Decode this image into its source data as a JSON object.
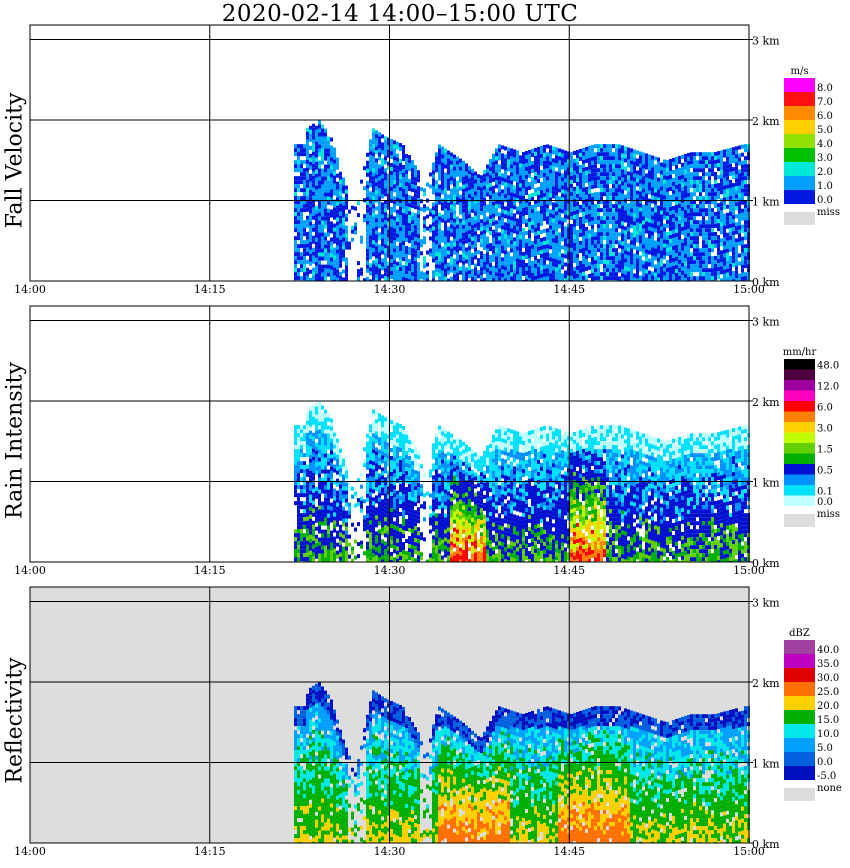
{
  "title": "2020-02-14   14:00–15:00 UTC",
  "x_tick_labels": [
    "14:00",
    "14:15",
    "14:30",
    "14:45",
    "15:00"
  ],
  "height_labels": [
    "3 km",
    "2 km",
    "1 km",
    "0 km"
  ],
  "panels": [
    {
      "id": "fall-velocity",
      "ylabel": "Fall Velocity",
      "unit": "m/s",
      "background": "#ffffff",
      "legend": [
        {
          "label": "8.0",
          "color": "#ff00ff"
        },
        {
          "label": "7.0",
          "color": "#ff1010"
        },
        {
          "label": "6.0",
          "color": "#ff8c00"
        },
        {
          "label": "5.0",
          "color": "#ffd000"
        },
        {
          "label": "4.0",
          "color": "#90e000"
        },
        {
          "label": "3.0",
          "color": "#00c000"
        },
        {
          "label": "2.0",
          "color": "#00e8d8"
        },
        {
          "label": "1.0",
          "color": "#00a0ff"
        },
        {
          "label": "0.0",
          "color": "#0018e0"
        }
      ],
      "miss_label": "miss"
    },
    {
      "id": "rain-intensity",
      "ylabel": "Rain Intensity",
      "unit": "mm/hr",
      "background": "#ffffff",
      "legend": [
        {
          "label": "48.0",
          "color": "#000000"
        },
        {
          "label": "",
          "color": "#500040"
        },
        {
          "label": "12.0",
          "color": "#a000a0"
        },
        {
          "label": "",
          "color": "#ff00c0"
        },
        {
          "label": "6.0",
          "color": "#ff0000"
        },
        {
          "label": "",
          "color": "#ff8000"
        },
        {
          "label": "3.0",
          "color": "#ffd000"
        },
        {
          "label": "",
          "color": "#c0ff00"
        },
        {
          "label": "1.5",
          "color": "#60d000"
        },
        {
          "label": "",
          "color": "#00b000"
        },
        {
          "label": "0.5",
          "color": "#0010d0"
        },
        {
          "label": "",
          "color": "#0090ff"
        },
        {
          "label": "0.1",
          "color": "#00e0ff"
        },
        {
          "label": "0.0",
          "color": "#c0ffff"
        }
      ],
      "miss_label": "miss"
    },
    {
      "id": "reflectivity",
      "ylabel": "Reflectivity",
      "unit": "dBZ",
      "background": "#dddddd",
      "legend": [
        {
          "label": "40.0",
          "color": "#a040a0"
        },
        {
          "label": "35.0",
          "color": "#c000c0"
        },
        {
          "label": "30.0",
          "color": "#e00000"
        },
        {
          "label": "25.0",
          "color": "#ff7000"
        },
        {
          "label": "20.0",
          "color": "#ffd000"
        },
        {
          "label": "15.0",
          "color": "#00b000"
        },
        {
          "label": "10.0",
          "color": "#00e8e8"
        },
        {
          "label": "5.0",
          "color": "#00a0ff"
        },
        {
          "label": "0.0",
          "color": "#0060e0"
        },
        {
          "label": "-5.0",
          "color": "#0010c0"
        }
      ],
      "miss_label": "none"
    }
  ],
  "chart_data": {
    "type": "heatmap",
    "title": "2020-02-14   14:00–15:00 UTC",
    "x_range": [
      "14:00",
      "15:00"
    ],
    "x_ticks": [
      "14:00",
      "14:15",
      "14:30",
      "14:45",
      "15:00"
    ],
    "y_range_km": [
      0,
      3.2
    ],
    "y_ticks_km": [
      0,
      1,
      2,
      3
    ],
    "grid": true,
    "legend_placement": "right",
    "echo_columns_minute_top_km": [
      [
        23.0,
        1.9
      ],
      [
        24.0,
        2.0
      ],
      [
        25.0,
        1.8
      ],
      [
        26.0,
        1.3
      ],
      [
        27.0,
        0.9
      ],
      [
        28.5,
        1.9
      ],
      [
        29.5,
        1.8
      ],
      [
        31.0,
        1.7
      ],
      [
        33.0,
        1.2
      ],
      [
        34.0,
        1.7
      ],
      [
        36.0,
        1.5
      ],
      [
        37.5,
        1.3
      ],
      [
        39.0,
        1.7
      ],
      [
        41.0,
        1.6
      ],
      [
        43.0,
        1.7
      ],
      [
        45.0,
        1.6
      ],
      [
        47.0,
        1.7
      ],
      [
        49.0,
        1.7
      ],
      [
        51.0,
        1.6
      ],
      [
        53.0,
        1.5
      ],
      [
        55.0,
        1.6
      ],
      [
        57.0,
        1.6
      ],
      [
        59.5,
        1.7
      ]
    ]
  }
}
